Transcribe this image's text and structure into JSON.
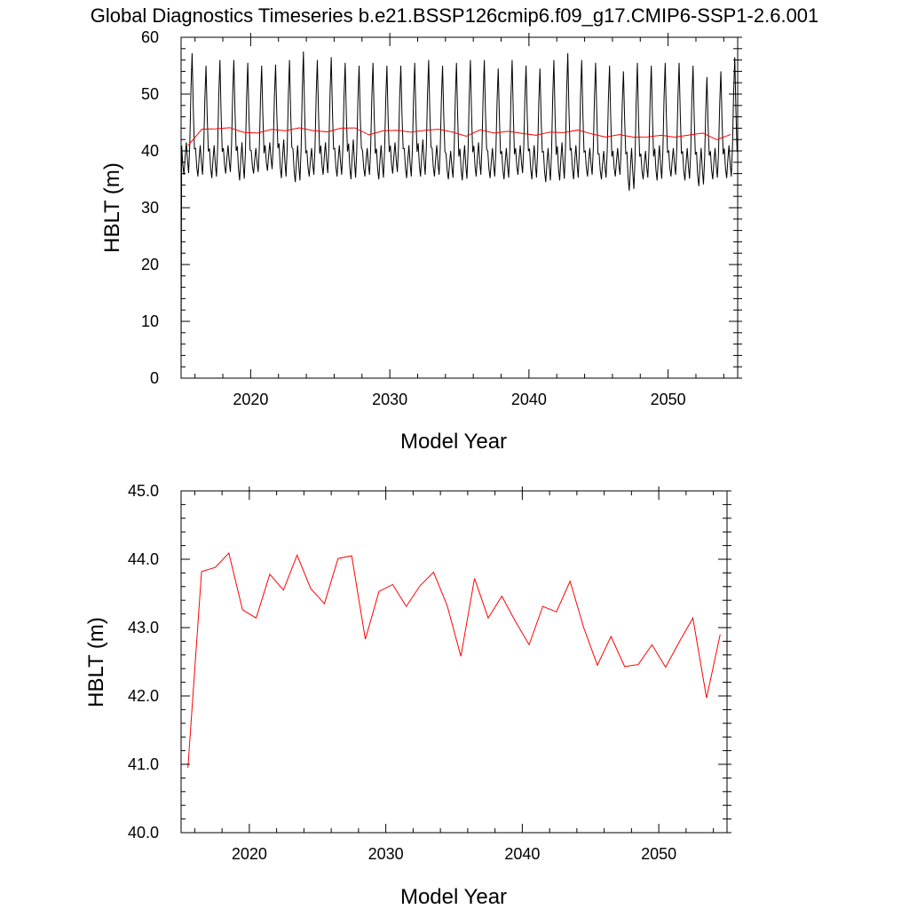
{
  "chart_data": [
    {
      "type": "line",
      "title": "Global Diagnostics Timeseries b.e21.BSSP126cmip6.f09_g17.CMIP6-SSP1-2.6.001",
      "xlabel": "Model Year",
      "ylabel": "HBLT (m)",
      "xlim": [
        2015,
        2055
      ],
      "ylim": [
        0,
        60
      ],
      "xticks": [
        "2020",
        "2030",
        "2040",
        "2050"
      ],
      "yticks": [
        "0",
        "10",
        "20",
        "30",
        "40",
        "50",
        "60"
      ],
      "series": [
        {
          "color": "#000000",
          "sampling": "monthly",
          "monthly_peak": [
            57.2,
            55.0,
            56.0,
            56.0,
            55.5,
            55.0,
            55.2,
            56.0,
            57.5,
            56.0,
            56.5,
            55.5,
            55.0,
            55.5,
            55.0,
            55.0,
            55.5,
            56.0,
            55.0,
            55.5,
            56.0,
            56.0,
            54.5,
            56.0,
            55.0,
            54.5,
            56.0,
            57.2,
            56.0,
            55.5,
            55.0,
            54.0,
            55.5,
            55.0,
            55.5,
            55.5,
            55.0,
            53.0,
            54.0,
            56.5
          ],
          "monthly_trough": [
            35.8,
            35.5,
            35.2,
            36.0,
            34.8,
            36.0,
            36.5,
            35.2,
            34.5,
            35.5,
            35.8,
            35.5,
            35.0,
            35.5,
            35.0,
            36.0,
            35.2,
            35.5,
            35.5,
            35.0,
            34.8,
            35.5,
            35.2,
            35.0,
            35.8,
            35.0,
            34.5,
            34.8,
            35.0,
            35.5,
            35.0,
            35.5,
            33.0,
            35.0,
            34.8,
            35.5,
            34.8,
            33.8,
            35.0,
            35.2
          ],
          "monthly_secondary_peak": [
            41.5,
            41.0,
            41.0,
            41.0,
            41.5,
            40.5,
            41.5,
            42.0,
            41.0,
            40.5,
            41.5,
            41.0,
            42.0,
            40.5,
            41.0,
            41.5,
            41.0,
            42.0,
            41.0,
            40.0,
            41.0,
            41.5,
            40.5,
            40.5,
            41.0,
            41.0,
            40.5,
            41.5,
            41.0,
            40.5,
            40.0,
            40.5,
            40.5,
            40.0,
            41.0,
            40.5,
            40.5,
            40.5,
            40.5,
            41.0
          ]
        },
        {
          "color": "#ff0000",
          "x": [
            2015.5,
            2016.5,
            2017.5,
            2018.5,
            2019.5,
            2020.5,
            2021.5,
            2022.5,
            2023.5,
            2024.5,
            2025.5,
            2026.5,
            2027.5,
            2028.5,
            2029.5,
            2030.5,
            2031.5,
            2032.5,
            2033.5,
            2034.5,
            2035.5,
            2036.5,
            2037.5,
            2038.5,
            2039.5,
            2040.5,
            2041.5,
            2042.5,
            2043.5,
            2044.5,
            2045.5,
            2046.5,
            2047.5,
            2048.5,
            2049.5,
            2050.5,
            2051.5,
            2052.5,
            2053.5,
            2054.5
          ],
          "values": [
            40.95,
            43.82,
            43.88,
            44.09,
            43.26,
            43.14,
            43.78,
            43.55,
            44.06,
            43.57,
            43.35,
            44.01,
            44.05,
            42.83,
            43.53,
            43.63,
            43.31,
            43.61,
            43.81,
            43.32,
            42.58,
            43.72,
            43.14,
            43.46,
            43.09,
            42.75,
            43.31,
            43.23,
            43.68,
            43.0,
            42.45,
            42.87,
            42.43,
            42.46,
            42.75,
            42.42,
            42.79,
            43.14,
            41.97,
            42.9
          ]
        }
      ]
    },
    {
      "type": "line",
      "title": "",
      "xlabel": "Model Year",
      "ylabel": "HBLT (m)",
      "xlim": [
        2015,
        2055
      ],
      "ylim": [
        40,
        45
      ],
      "xticks": [
        "2020",
        "2030",
        "2040",
        "2050"
      ],
      "yticks": [
        "40.0",
        "41.0",
        "42.0",
        "43.0",
        "44.0",
        "45.0"
      ],
      "series": [
        {
          "color": "#ff0000",
          "x": [
            2015.5,
            2016.5,
            2017.5,
            2018.5,
            2019.5,
            2020.5,
            2021.5,
            2022.5,
            2023.5,
            2024.5,
            2025.5,
            2026.5,
            2027.5,
            2028.5,
            2029.5,
            2030.5,
            2031.5,
            2032.5,
            2033.5,
            2034.5,
            2035.5,
            2036.5,
            2037.5,
            2038.5,
            2039.5,
            2040.5,
            2041.5,
            2042.5,
            2043.5,
            2044.5,
            2045.5,
            2046.5,
            2047.5,
            2048.5,
            2049.5,
            2050.5,
            2051.5,
            2052.5,
            2053.5,
            2054.5
          ],
          "values": [
            40.95,
            43.82,
            43.88,
            44.09,
            43.26,
            43.14,
            43.78,
            43.55,
            44.06,
            43.57,
            43.35,
            44.01,
            44.05,
            42.83,
            43.53,
            43.63,
            43.31,
            43.61,
            43.81,
            43.32,
            42.58,
            43.72,
            43.14,
            43.46,
            43.09,
            42.75,
            43.31,
            43.23,
            43.68,
            43.0,
            42.45,
            42.87,
            42.43,
            42.46,
            42.75,
            42.42,
            42.79,
            43.14,
            41.97,
            42.9
          ]
        }
      ]
    }
  ]
}
